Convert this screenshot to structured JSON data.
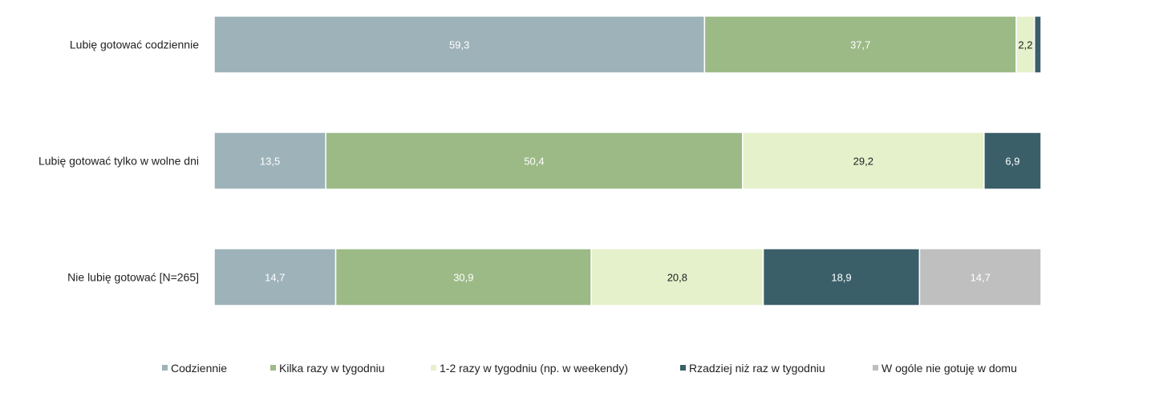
{
  "chart_data": {
    "type": "bar",
    "orientation": "horizontal",
    "stacked": true,
    "title": "",
    "xlabel": "",
    "ylabel": "",
    "xlim": [
      0,
      100
    ],
    "grid": false,
    "legend_position": "bottom",
    "categories": [
      "Lubię gotować codziennie",
      "Lubię gotować tylko w wolne dni",
      "Nie lubię gotować [N=265]"
    ],
    "series": [
      {
        "name": "Codziennie",
        "color": "#9eb2b9",
        "label_color": "#ffffff",
        "values": [
          59.3,
          13.5,
          14.7
        ],
        "labels": [
          "59,3",
          "13,5",
          "14,7"
        ]
      },
      {
        "name": "Kilka razy w tygodniu",
        "color": "#9cba86",
        "label_color": "#ffffff",
        "values": [
          37.7,
          50.4,
          30.9
        ],
        "labels": [
          "37,7",
          "50,4",
          "30,9"
        ]
      },
      {
        "name": "1-2 razy w tygodniu (np. w weekendy)",
        "color": "#e5f1cb",
        "label_color": "#1f1f1f",
        "values": [
          2.2,
          29.2,
          20.8
        ],
        "labels": [
          "2,2",
          "29,2",
          "20,8"
        ]
      },
      {
        "name": "Rzadziej niż raz w tygodniu",
        "color": "#3b5f69",
        "label_color": "#ffffff",
        "values": [
          0.8,
          6.9,
          18.9
        ],
        "labels": [
          "",
          "6,9",
          "18,9"
        ]
      },
      {
        "name": "W ogóle nie gotuję w domu",
        "color": "#bfbfbf",
        "label_color": "#ffffff",
        "values": [
          0,
          0,
          14.7
        ],
        "labels": [
          "",
          "",
          "14,7"
        ]
      }
    ]
  }
}
